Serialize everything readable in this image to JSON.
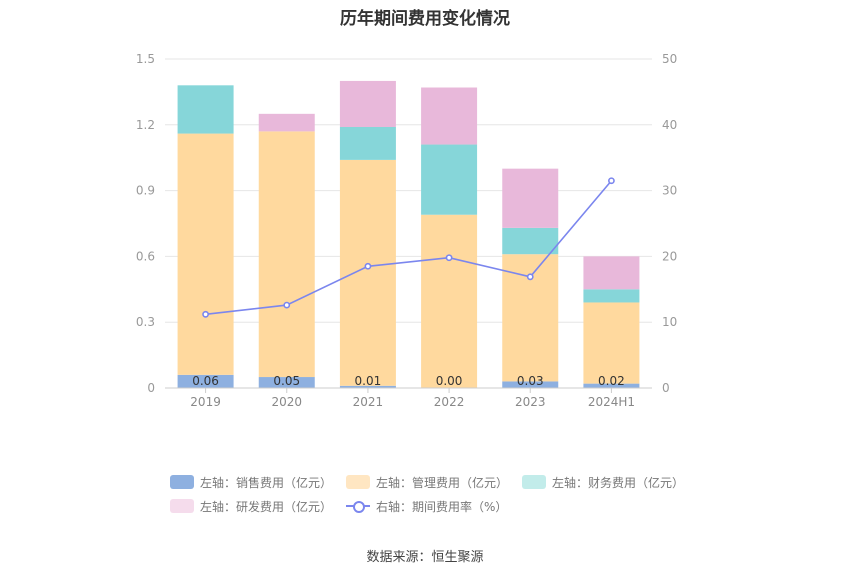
{
  "title": "历年期间费用变化情况",
  "source": "数据来源：恒生聚源",
  "colors": {
    "sales": "#8eb0e0",
    "admin": "#ffd99e",
    "finance": "#86d6d9",
    "rnd": "#e8b8da",
    "rate": "#7b86ee",
    "grid": "#e6e6e6"
  },
  "left_axis_ticks": [
    "0",
    "0.3",
    "0.6",
    "0.9",
    "1.2",
    "1.5"
  ],
  "right_axis_ticks": [
    "0",
    "10",
    "20",
    "30",
    "40",
    "50"
  ],
  "legend": [
    {
      "key": "sales",
      "label": "左轴：销售费用（亿元）",
      "color": "#8eb0e0",
      "style": "bar"
    },
    {
      "key": "admin",
      "label": "左轴：管理费用（亿元）",
      "color": "#ffe6c2",
      "style": "bar"
    },
    {
      "key": "finance",
      "label": "左轴：财务费用（亿元）",
      "color": "#c2ecea",
      "style": "bar"
    },
    {
      "key": "rnd",
      "label": "左轴：研发费用（亿元）",
      "color": "#f5dcec",
      "style": "bar"
    },
    {
      "key": "rate",
      "label": "右轴：期间费用率（%）",
      "color": "#7b86ee",
      "style": "line"
    }
  ],
  "chart_data": {
    "type": "bar",
    "stacked": true,
    "title": "历年期间费用变化情况",
    "categories": [
      "2019",
      "2020",
      "2021",
      "2022",
      "2023",
      "2024H1"
    ],
    "ylim_left": [
      0,
      1.5
    ],
    "ylim_right": [
      0,
      50
    ],
    "grid": true,
    "legend_position": "bottom",
    "series": [
      {
        "name": "左轴：销售费用（亿元）",
        "axis": "left",
        "values": [
          0.06,
          0.05,
          0.01,
          0.0,
          0.03,
          0.02
        ],
        "data_labels": [
          "0.06",
          "0.05",
          "0.01",
          "0.00",
          "0.03",
          "0.02"
        ]
      },
      {
        "name": "左轴：管理费用（亿元）",
        "axis": "left",
        "values": [
          1.1,
          1.12,
          1.03,
          0.79,
          0.58,
          0.37
        ]
      },
      {
        "name": "左轴：财务费用（亿元）",
        "axis": "left",
        "values": [
          0.22,
          0.0,
          0.15,
          0.32,
          0.12,
          0.06
        ]
      },
      {
        "name": "左轴：研发费用（亿元）",
        "axis": "left",
        "values": [
          0.0,
          0.08,
          0.21,
          0.26,
          0.27,
          0.15
        ]
      },
      {
        "name": "右轴：期间费用率（%）",
        "axis": "right",
        "type": "line",
        "values": [
          11.2,
          12.6,
          18.5,
          19.8,
          16.9,
          31.5
        ]
      }
    ]
  }
}
